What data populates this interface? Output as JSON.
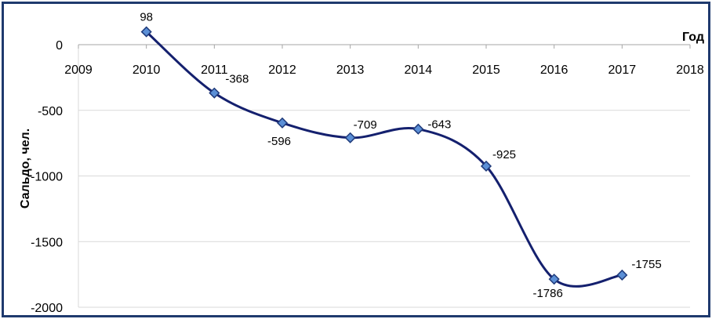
{
  "chart_data": {
    "type": "line",
    "title": "",
    "xlabel": "Год",
    "ylabel": "Сальдо, чел.",
    "x": [
      2010,
      2011,
      2012,
      2013,
      2014,
      2015,
      2016,
      2017
    ],
    "series": [
      {
        "values": [
          98,
          -368,
          -596,
          -709,
          -643,
          -925,
          -1786,
          -1755
        ]
      }
    ],
    "data_labels": [
      "98",
      "-368",
      "-596",
      "-709",
      "-643",
      "-925",
      "-1786",
      "-1755"
    ],
    "xlim": [
      2009,
      2018
    ],
    "ylim": [
      -2000,
      0
    ],
    "x_ticks": [
      "2009",
      "2010",
      "2011",
      "2012",
      "2013",
      "2014",
      "2015",
      "2016",
      "2017",
      "2018"
    ],
    "y_ticks": [
      "0",
      "-500",
      "-1000",
      "-1500",
      "-2000"
    ],
    "grid": true,
    "smooth": true,
    "colors": {
      "line": "#14206e",
      "marker_fill": "#5b8fd6",
      "marker_stroke": "#1f3a7a",
      "grid": "#d9d9d9",
      "border": "#1f3a6e"
    }
  }
}
